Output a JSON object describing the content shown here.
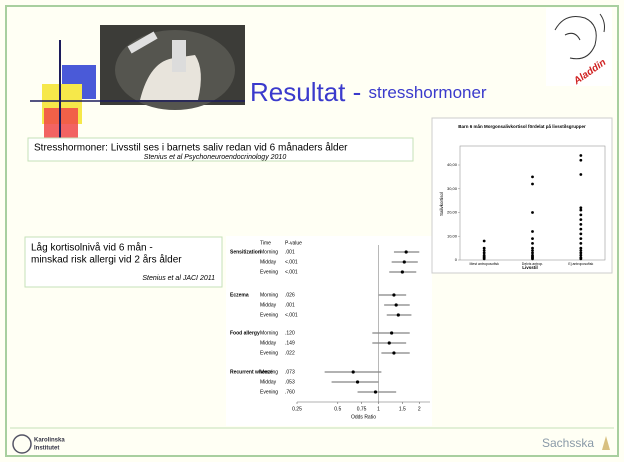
{
  "title": {
    "main": "Resultat - ",
    "sub": "stresshormoner"
  },
  "logo": "Aladdin",
  "box1": {
    "text": "Stresshormoner: Livsstil ses i barnets saliv redan vid 6 månaders ålder",
    "cite": "Stenius et al Psychoneuroendocrinology 2010"
  },
  "box2": {
    "lines": [
      "Låg kortisolnivå  vid 6 mån -",
      "minskad risk allergi vid 2 års ålder"
    ],
    "cite": "Stenius et al JACI 2011"
  },
  "forest": {
    "headers": [
      "Time",
      "P-value"
    ],
    "groups": [
      {
        "name": "Sensitization",
        "rows": [
          {
            "time": "Morning",
            "p": ".001",
            "or": 1.6,
            "ci": [
              1.3,
              2.0
            ]
          },
          {
            "time": "Midday",
            "p": "<.001",
            "or": 1.55,
            "ci": [
              1.25,
              1.95
            ]
          },
          {
            "time": "Evening",
            "p": "<.001",
            "or": 1.5,
            "ci": [
              1.2,
              1.9
            ]
          }
        ]
      },
      {
        "name": "Eczema",
        "rows": [
          {
            "time": "Morning",
            "p": ".026",
            "or": 1.3,
            "ci": [
              1.0,
              1.6
            ]
          },
          {
            "time": "Midday",
            "p": ".001",
            "or": 1.35,
            "ci": [
              1.1,
              1.7
            ]
          },
          {
            "time": "Evening",
            "p": "<.001",
            "or": 1.4,
            "ci": [
              1.15,
              1.75
            ]
          }
        ]
      },
      {
        "name": "Food allergy",
        "rows": [
          {
            "time": "Morning",
            "p": ".120",
            "or": 1.25,
            "ci": [
              0.9,
              1.7
            ]
          },
          {
            "time": "Midday",
            "p": ".149",
            "or": 1.2,
            "ci": [
              0.9,
              1.6
            ]
          },
          {
            "time": "Evening",
            "p": ".022",
            "or": 1.3,
            "ci": [
              1.05,
              1.7
            ]
          }
        ]
      },
      {
        "name": "Recurrent wheeze",
        "rows": [
          {
            "time": "Morning",
            "p": ".073",
            "or": 0.65,
            "ci": [
              0.4,
              1.05
            ]
          },
          {
            "time": "Midday",
            "p": ".053",
            "or": 0.7,
            "ci": [
              0.45,
              1.0
            ]
          },
          {
            "time": "Evening",
            "p": ".760",
            "or": 0.95,
            "ci": [
              0.7,
              1.35
            ]
          }
        ]
      }
    ],
    "xlim": [
      0.25,
      2.4
    ],
    "xticks": [
      0.25,
      0.5,
      0.75,
      1,
      1.5,
      2
    ],
    "reference": 1,
    "log": true,
    "xlabel": "Odds Ratio"
  },
  "scatter": {
    "title": "Barn 6 mån Morgonsalivkortisol fördelat på livsstilsgrupper",
    "ylabel": "Salivkortisol",
    "xlabel": "Livsstil",
    "categories": [
      "Mest antroposofisk",
      "Delvis antrop.",
      "Ej antroposofisk"
    ],
    "values": [
      [
        8,
        5,
        4,
        3,
        2,
        1.5,
        1,
        0.5
      ],
      [
        35,
        32,
        20,
        12,
        9,
        7,
        5,
        4,
        3,
        2,
        1.5,
        1,
        0.5
      ],
      [
        44,
        42,
        36,
        22,
        21,
        19,
        17,
        15,
        13,
        11,
        9,
        7,
        5,
        4,
        3,
        2,
        1,
        0.5
      ]
    ],
    "ylim": [
      0,
      48
    ],
    "yticks": [
      {
        "value": 0,
        "label": "0"
      },
      {
        "value": 10,
        "label": "10,00"
      },
      {
        "value": 20,
        "label": "20,00"
      },
      {
        "value": 30,
        "label": "30,00"
      },
      {
        "value": 40,
        "label": "40,00"
      }
    ]
  },
  "footer": {
    "left": [
      "Karolinska",
      "Institutet"
    ],
    "right": "Sachsska"
  }
}
